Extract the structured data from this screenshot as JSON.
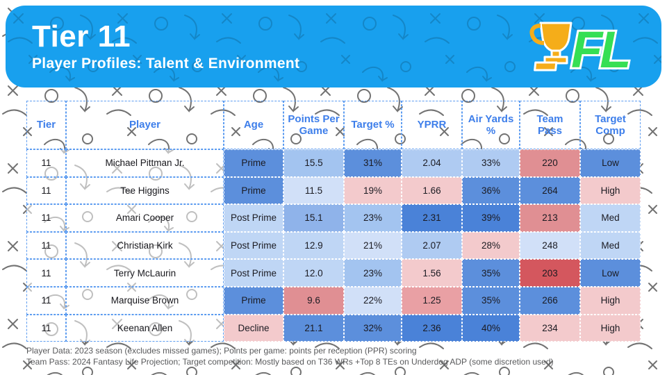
{
  "header": {
    "title": "Tier 11",
    "subtitle": "Player Profiles: Talent & Environment",
    "bg_color": "#18a0ee",
    "logo": {
      "text": "FL",
      "text_color": "#35df54",
      "trophy_color": "#f5ad19"
    }
  },
  "palette": {
    "b5": "#4a82d8",
    "b4": "#5c8fdc",
    "b35": "#8fb3ea",
    "b3": "#a3c4f0",
    "b25": "#afcbf2",
    "b2": "#bfd6f5",
    "b1": "#d1e0f8",
    "r1": "#f3cacc",
    "r2": "#e9a0a4",
    "r3": "#e08f93",
    "r4": "#d4575e"
  },
  "table": {
    "columns": [
      "Tier",
      "Player",
      "Age",
      "Points Per Game",
      "Target %",
      "YPRR",
      "Air Yards %",
      "Team Pass",
      "Target Comp"
    ],
    "header_text_color": "#3d7eea",
    "rows": [
      {
        "tier": "11",
        "player": "Michael Pittman Jr.",
        "cells": [
          {
            "v": "Prime",
            "c": "b4"
          },
          {
            "v": "15.5",
            "c": "b3"
          },
          {
            "v": "31%",
            "c": "b4"
          },
          {
            "v": "2.04",
            "c": "b25"
          },
          {
            "v": "33%",
            "c": "b25"
          },
          {
            "v": "220",
            "c": "r3"
          },
          {
            "v": "Low",
            "c": "b4"
          }
        ]
      },
      {
        "tier": "11",
        "player": "Tee Higgins",
        "cells": [
          {
            "v": "Prime",
            "c": "b4"
          },
          {
            "v": "11.5",
            "c": "b1"
          },
          {
            "v": "19%",
            "c": "r1"
          },
          {
            "v": "1.66",
            "c": "r1"
          },
          {
            "v": "36%",
            "c": "b4"
          },
          {
            "v": "264",
            "c": "b4"
          },
          {
            "v": "High",
            "c": "r1"
          }
        ]
      },
      {
        "tier": "11",
        "player": "Amari Cooper",
        "cells": [
          {
            "v": "Post Prime",
            "c": "b2"
          },
          {
            "v": "15.1",
            "c": "b35"
          },
          {
            "v": "23%",
            "c": "b3"
          },
          {
            "v": "2.31",
            "c": "b5"
          },
          {
            "v": "39%",
            "c": "b5"
          },
          {
            "v": "213",
            "c": "r3"
          },
          {
            "v": "Med",
            "c": "b2"
          }
        ]
      },
      {
        "tier": "11",
        "player": "Christian Kirk",
        "cells": [
          {
            "v": "Post Prime",
            "c": "b2"
          },
          {
            "v": "12.9",
            "c": "b2"
          },
          {
            "v": "21%",
            "c": "b1"
          },
          {
            "v": "2.07",
            "c": "b25"
          },
          {
            "v": "28%",
            "c": "r1"
          },
          {
            "v": "248",
            "c": "b1"
          },
          {
            "v": "Med",
            "c": "b2"
          }
        ]
      },
      {
        "tier": "11",
        "player": "Terry McLaurin",
        "cells": [
          {
            "v": "Post Prime",
            "c": "b2"
          },
          {
            "v": "12.0",
            "c": "b2"
          },
          {
            "v": "23%",
            "c": "b3"
          },
          {
            "v": "1.56",
            "c": "r1"
          },
          {
            "v": "35%",
            "c": "b4"
          },
          {
            "v": "203",
            "c": "r4"
          },
          {
            "v": "Low",
            "c": "b4"
          }
        ]
      },
      {
        "tier": "11",
        "player": "Marquise Brown",
        "cells": [
          {
            "v": "Prime",
            "c": "b4"
          },
          {
            "v": "9.6",
            "c": "r3"
          },
          {
            "v": "22%",
            "c": "b1"
          },
          {
            "v": "1.25",
            "c": "r2"
          },
          {
            "v": "35%",
            "c": "b4"
          },
          {
            "v": "266",
            "c": "b4"
          },
          {
            "v": "High",
            "c": "r1"
          }
        ]
      },
      {
        "tier": "11",
        "player": "Keenan Allen",
        "cells": [
          {
            "v": "Decline",
            "c": "r1"
          },
          {
            "v": "21.1",
            "c": "b4"
          },
          {
            "v": "32%",
            "c": "b4"
          },
          {
            "v": "2.36",
            "c": "b5"
          },
          {
            "v": "40%",
            "c": "b5"
          },
          {
            "v": "234",
            "c": "r1"
          },
          {
            "v": "High",
            "c": "r1"
          }
        ]
      }
    ]
  },
  "chart_data": {
    "type": "table",
    "title": "Tier 11 — Player Profiles: Talent & Environment",
    "columns": [
      "Tier",
      "Player",
      "Age",
      "Points Per Game",
      "Target %",
      "YPRR",
      "Air Yards %",
      "Team Pass",
      "Target Comp"
    ],
    "rows": [
      [
        "11",
        "Michael Pittman Jr.",
        "Prime",
        15.5,
        "31%",
        2.04,
        "33%",
        220,
        "Low"
      ],
      [
        "11",
        "Tee Higgins",
        "Prime",
        11.5,
        "19%",
        1.66,
        "36%",
        264,
        "High"
      ],
      [
        "11",
        "Amari Cooper",
        "Post Prime",
        15.1,
        "23%",
        2.31,
        "39%",
        213,
        "Med"
      ],
      [
        "11",
        "Christian Kirk",
        "Post Prime",
        12.9,
        "21%",
        2.07,
        "28%",
        248,
        "Med"
      ],
      [
        "11",
        "Terry McLaurin",
        "Post Prime",
        12.0,
        "23%",
        1.56,
        "35%",
        203,
        "Low"
      ],
      [
        "11",
        "Marquise Brown",
        "Prime",
        9.6,
        "22%",
        1.25,
        "35%",
        266,
        "High"
      ],
      [
        "11",
        "Keenan Allen",
        "Decline",
        21.1,
        "32%",
        2.36,
        "40%",
        234,
        "High"
      ]
    ],
    "layout_hints": "per-cell diverging heatmap: blue = favorable, red = unfavorable; Tier and Player columns uncolored with dashed blue borders"
  },
  "footer": {
    "line1": "Player Data: 2023 season (excludes missed games); Points per game: points per reception (PPR) scoring",
    "line2": "Team Pass: 2024 Fantasy Life Projection; Target competition: Mostly based on T36 WRs +Top 8 TEs on Underdog ADP (some discretion used)"
  }
}
